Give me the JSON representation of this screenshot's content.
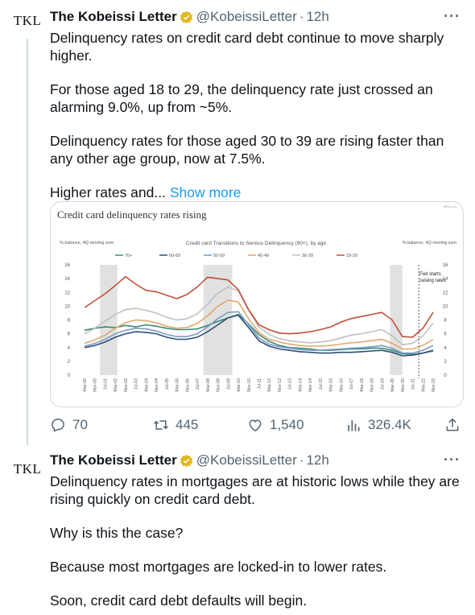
{
  "tweets": [
    {
      "avatar_text": "TKL",
      "author_name": "The Kobeissi Letter",
      "handle": "@KobeissiLetter",
      "separator": "·",
      "time": "12h",
      "more_label": "···",
      "paragraphs": [
        "Delinquency rates on credit card debt continue to move sharply higher.",
        "For those aged 18 to 29, the delinquency rate just crossed an alarming 9.0%, up from ~5%.",
        "Delinquency rates for those aged 30 to 39 are rising faster than any other age group, now at 7.5%."
      ],
      "truncated_text": "Higher rates and...",
      "show_more": "Show more",
      "actions": {
        "replies": "70",
        "retweets": "445",
        "likes": "1,540",
        "views": "326.4K"
      }
    },
    {
      "avatar_text": "TKL",
      "author_name": "The Kobeissi Letter",
      "handle": "@KobeissiLetter",
      "separator": "·",
      "time": "12h",
      "more_label": "···",
      "paragraphs": [
        "Delinquency rates in mortgages are at historic lows while they are rising quickly on credit card debt.",
        "Why is this the case?",
        "Because most mortgages are locked-in to lower rates.",
        "Soon, credit card debt defaults will begin."
      ]
    }
  ],
  "chart_data": {
    "type": "line",
    "source": "APOLLO",
    "title": "Credit card delinquency rates rising",
    "subtitle": "Credit card Transitions to Serious Delinquency (90+), by age",
    "left_unit": "% balance, 4Q moving sum",
    "right_unit": "% balance, 4Q moving sum",
    "annotation": "Fed starts raising rates",
    "ylim": [
      0,
      16
    ],
    "yticks": [
      "0",
      "2",
      "4",
      "6",
      "8",
      "10",
      "12",
      "14",
      "16"
    ],
    "x": [
      "Mar-00",
      "Nov-00",
      "Jul-01",
      "Mar-02",
      "Nov-02",
      "Jul-03",
      "Mar-04",
      "Nov-04",
      "Jul-05",
      "Mar-06",
      "Nov-06",
      "Jul-07",
      "Mar-08",
      "Nov-08",
      "Jul-09",
      "Mar-10",
      "Nov-10",
      "Jul-11",
      "Mar-12",
      "Nov-12",
      "Jul-13",
      "Mar-14",
      "Nov-14",
      "Jul-15",
      "Mar-16",
      "Nov-16",
      "Jul-17",
      "Mar-18",
      "Nov-18",
      "Jul-19",
      "Mar-20",
      "Nov-20",
      "Jul-21",
      "Mar-22",
      "Nov-22"
    ],
    "recessions": [
      [
        1.5,
        3.2
      ],
      [
        11.6,
        14.4
      ],
      [
        29.8,
        31.0
      ]
    ],
    "fed_line": 32.6,
    "series": [
      {
        "name": "70+",
        "color": "#3c8a78",
        "values": [
          6.5,
          6.8,
          7.0,
          6.9,
          7.2,
          7.0,
          7.3,
          7.1,
          6.8,
          6.6,
          6.6,
          6.7,
          7.2,
          7.8,
          8.3,
          8.8,
          7.4,
          5.9,
          4.9,
          4.3,
          4.0,
          3.9,
          3.8,
          3.6,
          3.6,
          3.7,
          3.8,
          3.8,
          3.9,
          3.9,
          3.6,
          3.1,
          3.0,
          3.2,
          3.5
        ]
      },
      {
        "name": "60-69",
        "color": "#2d4f77",
        "values": [
          4.0,
          4.3,
          4.8,
          5.5,
          6.0,
          6.3,
          6.2,
          6.0,
          5.5,
          5.2,
          5.2,
          5.5,
          6.3,
          7.3,
          8.3,
          8.7,
          6.9,
          5.0,
          4.2,
          3.8,
          3.6,
          3.4,
          3.3,
          3.2,
          3.2,
          3.3,
          3.3,
          3.4,
          3.5,
          3.6,
          3.3,
          2.8,
          2.9,
          3.2,
          3.6
        ]
      },
      {
        "name": "50-59",
        "color": "#7b9cc0",
        "values": [
          4.2,
          4.6,
          5.2,
          6.0,
          6.5,
          6.8,
          6.7,
          6.4,
          5.9,
          5.6,
          5.6,
          6.0,
          7.0,
          8.2,
          9.1,
          9.2,
          7.3,
          5.4,
          4.5,
          4.1,
          3.9,
          3.7,
          3.6,
          3.6,
          3.7,
          3.8,
          3.9,
          4.0,
          4.1,
          4.3,
          3.9,
          3.2,
          3.2,
          3.6,
          4.3
        ]
      },
      {
        "name": "40-49",
        "color": "#e0a868",
        "values": [
          4.6,
          5.1,
          5.8,
          6.8,
          7.6,
          8.0,
          7.9,
          7.6,
          7.1,
          6.8,
          6.9,
          7.5,
          8.6,
          10.0,
          10.9,
          10.6,
          8.2,
          6.2,
          5.2,
          4.8,
          4.5,
          4.3,
          4.2,
          4.2,
          4.3,
          4.5,
          4.7,
          4.8,
          5.0,
          5.2,
          4.6,
          3.8,
          3.8,
          4.3,
          5.2
        ]
      },
      {
        "name": "30-39",
        "color": "#c0c0c0",
        "values": [
          6.0,
          6.8,
          7.8,
          8.8,
          9.5,
          9.7,
          9.4,
          9.0,
          8.4,
          8.0,
          8.2,
          8.9,
          10.3,
          11.9,
          12.8,
          12.2,
          9.4,
          7.0,
          5.9,
          5.3,
          5.0,
          4.8,
          4.7,
          4.8,
          5.0,
          5.4,
          5.8,
          6.0,
          6.3,
          6.6,
          5.7,
          4.4,
          4.6,
          5.7,
          7.5
        ]
      },
      {
        "name": "18-29",
        "color": "#c0503a",
        "values": [
          9.8,
          10.8,
          11.8,
          13.0,
          14.3,
          13.2,
          12.3,
          12.1,
          11.6,
          11.1,
          11.7,
          12.8,
          14.2,
          14.0,
          13.8,
          12.4,
          9.5,
          7.3,
          6.6,
          6.1,
          6.0,
          6.1,
          6.3,
          6.6,
          7.0,
          7.7,
          8.2,
          8.5,
          8.8,
          9.1,
          8.0,
          5.6,
          5.5,
          6.8,
          9.1
        ]
      }
    ]
  }
}
